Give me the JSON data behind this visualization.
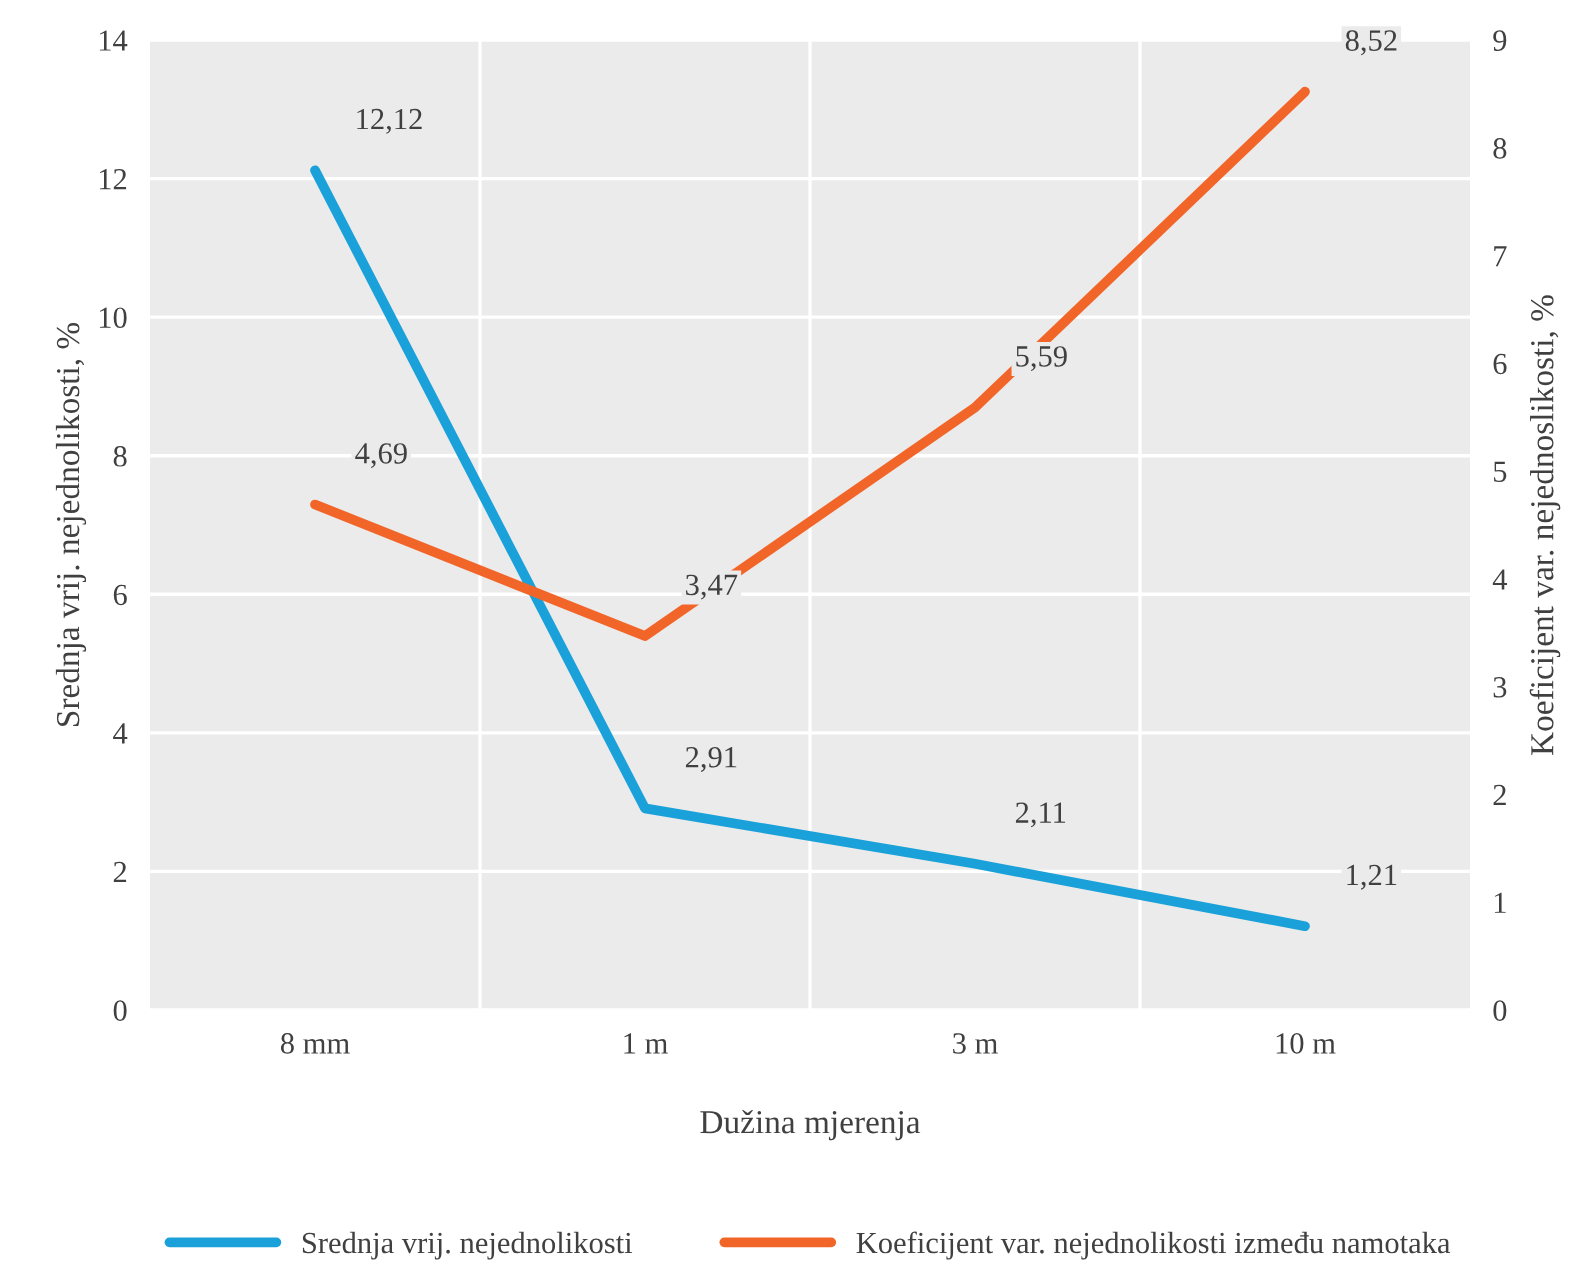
{
  "chart_data": {
    "type": "line",
    "xlabel": "Dužina mjerenja",
    "ylabel": "Srednja vrij. nejednolikosti, %",
    "y2label": "Koeficijent var. nejednoslikosti, %",
    "categories": [
      "8 mm",
      "1 m",
      "3 m",
      "10 m"
    ],
    "series": [
      {
        "name": "Srednja vrij. nejednolikosti",
        "color": "#1ba1d9",
        "values": [
          12.12,
          2.91,
          2.11,
          1.21
        ],
        "value_labels": [
          "12,12",
          "2,91",
          "2,11",
          "1,21"
        ]
      },
      {
        "name": "Koeficijent var. nejednolikosti između namotaka",
        "color": "#f26529",
        "axis": "y2",
        "values": [
          4.69,
          3.47,
          5.59,
          8.52
        ],
        "value_labels": [
          "4,69",
          "3,47",
          "5,59",
          "8,52"
        ]
      }
    ],
    "ylim": [
      0,
      14
    ],
    "yticks": [
      0,
      2,
      4,
      6,
      8,
      10,
      12,
      14
    ],
    "y2lim": [
      0,
      9
    ],
    "y2ticks": [
      0,
      1,
      2,
      3,
      4,
      5,
      6,
      7,
      8,
      9
    ],
    "grid": true,
    "legend": "bottom",
    "marker": "none",
    "line_style": "solid"
  }
}
